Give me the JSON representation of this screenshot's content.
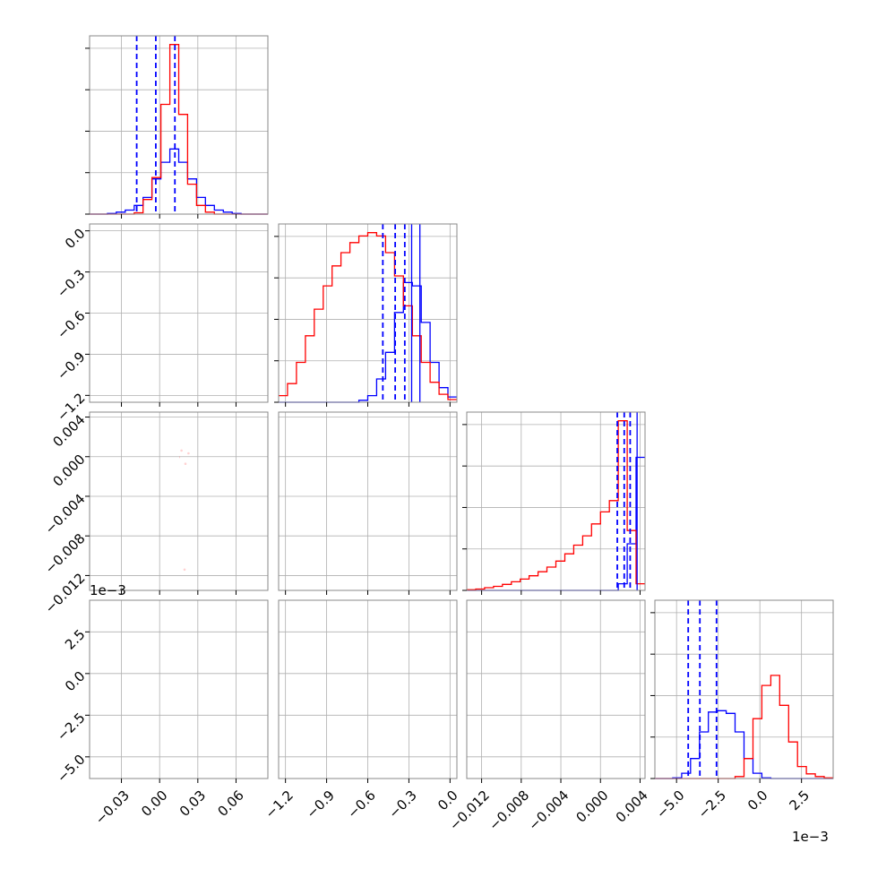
{
  "chart_data": {
    "type": "corner",
    "grid": true,
    "colors": {
      "series_a": "#0000ff",
      "series_b": "#ff0000",
      "frame": "#888888",
      "grid": "#b0b0b0"
    },
    "series": [
      {
        "color": "#0000ff",
        "means": [
          0.0,
          -0.4,
          0.0025,
          -0.0035
        ]
      },
      {
        "color": "#ff0000",
        "means": [
          0.002,
          -0.7,
          0.0004,
          0.0
        ]
      }
    ],
    "params": [
      {
        "range": [
          -0.055,
          0.085
        ],
        "ticks": [
          -0.03,
          0.0,
          0.03,
          0.06
        ],
        "tick_labels": [
          "−0.03",
          "0.00",
          "0.03",
          "0.06"
        ],
        "offset_label": ""
      },
      {
        "range": [
          -1.25,
          0.05
        ],
        "ticks": [
          -1.2,
          -0.9,
          -0.6,
          -0.3,
          0.0
        ],
        "tick_labels": [
          "−1.2",
          "−0.9",
          "−0.6",
          "−0.3",
          "0.0"
        ],
        "offset_label": ""
      },
      {
        "range": [
          -0.0135,
          0.0045
        ],
        "ticks": [
          -0.012,
          -0.008,
          -0.004,
          0.0,
          0.004
        ],
        "tick_labels": [
          "−0.012",
          "−0.008",
          "−0.004",
          "0.000",
          "0.004"
        ],
        "offset_label": ""
      },
      {
        "range": [
          -6.3,
          4.4
        ],
        "ticks": [
          -5.0,
          -2.5,
          0.0,
          2.5
        ],
        "tick_labels": [
          "−5.0",
          "−2.5",
          "0.0",
          "2.5"
        ],
        "offset_label": "1e−3"
      }
    ],
    "y_offset_label": "1e−3",
    "diagonal": [
      {
        "a": [
          0,
          0,
          1,
          3,
          6,
          13,
          25,
          53,
          78,
          98,
          78,
          53,
          25,
          13,
          6,
          3,
          1,
          0,
          0,
          0
        ],
        "b": [
          0,
          0,
          0,
          0,
          0,
          2,
          22,
          55,
          165,
          255,
          150,
          45,
          13,
          3,
          0,
          0,
          0,
          0,
          0,
          0
        ],
        "quantile_lines": [
          -0.018,
          -0.003,
          0.012
        ],
        "solid_lines": []
      },
      {
        "a": [
          0,
          0,
          0,
          0,
          0,
          0,
          0,
          0,
          0,
          3,
          10,
          35,
          75,
          135,
          180,
          175,
          120,
          60,
          22,
          8
        ],
        "b": [
          10,
          28,
          60,
          100,
          140,
          175,
          205,
          225,
          240,
          250,
          255,
          250,
          225,
          190,
          145,
          100,
          60,
          30,
          12,
          4
        ],
        "quantile_lines": [
          -0.49,
          -0.4,
          -0.33
        ],
        "solid_lines": [
          -0.28,
          -0.22
        ]
      },
      {
        "a": [
          0,
          0,
          0,
          0,
          0,
          0,
          0,
          0,
          0,
          0,
          0,
          0,
          0,
          0,
          0,
          0,
          0,
          10,
          70,
          200
        ],
        "b": [
          1,
          2,
          4,
          6,
          9,
          13,
          17,
          22,
          28,
          35,
          44,
          55,
          68,
          82,
          100,
          118,
          135,
          255,
          90,
          10
        ],
        "quantile_lines": [
          0.0017,
          0.0024,
          0.003
        ],
        "solid_lines": [
          0.0037
        ]
      },
      {
        "a": [
          0,
          0,
          1,
          8,
          30,
          70,
          100,
          102,
          98,
          70,
          30,
          8,
          1,
          0,
          0,
          0,
          0,
          0,
          0,
          0
        ],
        "b": [
          0,
          0,
          0,
          0,
          0,
          0,
          0,
          0,
          0,
          3,
          30,
          90,
          140,
          155,
          110,
          55,
          18,
          7,
          3,
          1
        ],
        "quantile_lines": [
          -4.3,
          -3.6,
          -2.6
        ],
        "solid_lines": []
      }
    ]
  }
}
